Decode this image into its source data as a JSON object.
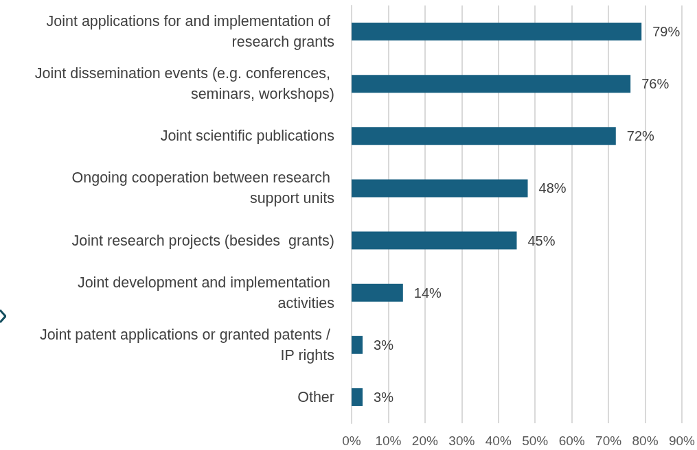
{
  "chart_data": {
    "type": "bar",
    "orientation": "horizontal",
    "categories": [
      "Joint applications for and implementation of research grants",
      "Joint dissemination events (e.g. conferences, seminars, workshops)",
      "Joint scientific publications",
      "Ongoing cooperation between research support units",
      "Joint research projects (besides  grants)",
      "Joint development and implementation activities",
      "Joint patent applications or granted patents / IP rights",
      "Other"
    ],
    "values": [
      79,
      76,
      72,
      48,
      45,
      14,
      3,
      3
    ],
    "value_labels": [
      "79%",
      "76%",
      "72%",
      "48%",
      "45%",
      "14%",
      "3%",
      "3%"
    ],
    "color": "#175f80",
    "xlim": [
      0,
      90
    ],
    "xticks": [
      {
        "value": 0,
        "label": "0%"
      },
      {
        "value": 10,
        "label": "10%"
      },
      {
        "value": 20,
        "label": "20%"
      },
      {
        "value": 30,
        "label": "30%"
      },
      {
        "value": 40,
        "label": "40%"
      },
      {
        "value": 50,
        "label": "50%"
      },
      {
        "value": 60,
        "label": "60%"
      },
      {
        "value": 70,
        "label": "70%"
      },
      {
        "value": 80,
        "label": "80%"
      },
      {
        "value": 90,
        "label": "90%"
      }
    ],
    "grid": "x"
  }
}
